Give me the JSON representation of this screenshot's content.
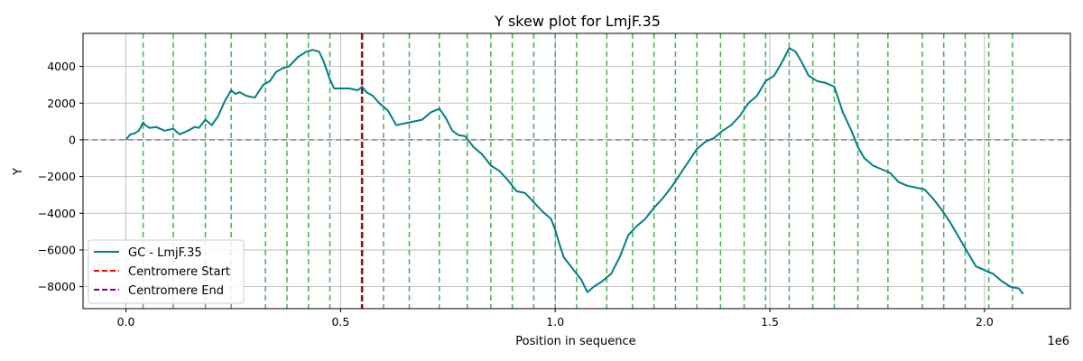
{
  "chart_data": {
    "type": "line",
    "title": "Y skew plot for LmjF.35",
    "xlabel": "Position in sequence",
    "ylabel": "Y",
    "x_offset_label": "1e6",
    "xlim": [
      -100000,
      2200000
    ],
    "ylim": [
      -9200,
      5800
    ],
    "x_ticks": [
      0,
      500000,
      1000000,
      1500000,
      2000000
    ],
    "x_tick_labels": [
      "0.0",
      "0.5",
      "1.0",
      "1.5",
      "2.0"
    ],
    "y_ticks": [
      -8000,
      -6000,
      -4000,
      -2000,
      0,
      2000,
      4000
    ],
    "y_tick_labels": [
      "−8000",
      "−6000",
      "−4000",
      "−2000",
      "0",
      "2000",
      "4000"
    ],
    "grid": true,
    "legend_position": "lower-left",
    "series": [
      {
        "name": "GC - LmjF.35",
        "color": "#008080",
        "x": [
          0,
          10000,
          20000,
          30000,
          40000,
          45000,
          55000,
          70000,
          90000,
          110000,
          125000,
          145000,
          160000,
          170000,
          185000,
          200000,
          215000,
          230000,
          245000,
          255000,
          265000,
          280000,
          300000,
          320000,
          335000,
          350000,
          365000,
          380000,
          400000,
          420000,
          435000,
          450000,
          460000,
          475000,
          485000,
          500000,
          520000,
          540000,
          550000,
          560000,
          575000,
          590000,
          610000,
          630000,
          650000,
          670000,
          690000,
          710000,
          730000,
          745000,
          760000,
          775000,
          790000,
          810000,
          830000,
          850000,
          870000,
          890000,
          910000,
          930000,
          950000,
          970000,
          990000,
          1000000,
          1010000,
          1020000,
          1040000,
          1060000,
          1075000,
          1090000,
          1110000,
          1130000,
          1150000,
          1170000,
          1190000,
          1210000,
          1230000,
          1250000,
          1270000,
          1290000,
          1310000,
          1330000,
          1350000,
          1370000,
          1390000,
          1410000,
          1430000,
          1450000,
          1470000,
          1490000,
          1510000,
          1530000,
          1545000,
          1560000,
          1575000,
          1590000,
          1610000,
          1630000,
          1650000,
          1670000,
          1690000,
          1705000,
          1720000,
          1740000,
          1760000,
          1780000,
          1800000,
          1820000,
          1840000,
          1860000,
          1880000,
          1900000,
          1920000,
          1940000,
          1960000,
          1980000,
          2000000,
          2020000,
          2040000,
          2060000,
          2080000,
          2090000
        ],
        "y": [
          0,
          300,
          350,
          500,
          950,
          800,
          650,
          700,
          500,
          600,
          300,
          500,
          700,
          650,
          1100,
          800,
          1300,
          2100,
          2700,
          2500,
          2600,
          2400,
          2300,
          3000,
          3200,
          3700,
          3900,
          4000,
          4500,
          4800,
          4900,
          4800,
          4300,
          3300,
          2800,
          2800,
          2800,
          2700,
          2900,
          2600,
          2400,
          2000,
          1600,
          800,
          900,
          1000,
          1100,
          1500,
          1700,
          1200,
          500,
          250,
          200,
          -400,
          -800,
          -1400,
          -1700,
          -2200,
          -2800,
          -2900,
          -3400,
          -3900,
          -4300,
          -4900,
          -5700,
          -6400,
          -7000,
          -7600,
          -8300,
          -8000,
          -7700,
          -7300,
          -6400,
          -5200,
          -4700,
          -4300,
          -3700,
          -3200,
          -2600,
          -1900,
          -1200,
          -500,
          -100,
          100,
          500,
          800,
          1300,
          2000,
          2400,
          3200,
          3500,
          4300,
          5000,
          4800,
          4200,
          3500,
          3200,
          3100,
          2900,
          1500,
          500,
          -400,
          -1000,
          -1400,
          -1600,
          -1800,
          -2300,
          -2500,
          -2600,
          -2700,
          -3200,
          -3800,
          -4500,
          -5300,
          -6100,
          -6900,
          -7100,
          -7300,
          -7700,
          -8000,
          -8100,
          -8400
        ]
      }
    ],
    "vlines_green": [
      40000,
      110000,
      185000,
      245000,
      325000,
      375000,
      425000,
      475000,
      600000,
      660000,
      730000,
      795000,
      850000,
      900000,
      950000,
      1000000,
      1050000,
      1120000,
      1180000,
      1230000,
      1280000,
      1330000,
      1385000,
      1440000,
      1490000,
      1545000,
      1600000,
      1650000,
      1705000,
      1775000,
      1855000,
      1905000,
      1955000,
      2010000,
      2065000
    ],
    "vline_green_color": "#4caf50",
    "centromere": {
      "start": 550000,
      "end": 550000
    },
    "centromere_overlap_color": "#8b1a1a",
    "hline_zero_color": "#808080",
    "legend": [
      {
        "label": "GC - LmjF.35",
        "style": "solid",
        "color": "#008080"
      },
      {
        "label": "Centromere Start",
        "style": "dashed",
        "color": "#ff0000"
      },
      {
        "label": "Centromere End",
        "style": "dashed",
        "color": "#800080"
      }
    ]
  }
}
